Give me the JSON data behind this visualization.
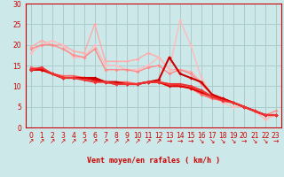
{
  "xlabel": "Vent moyen/en rafales ( km/h )",
  "xlim": [
    -0.5,
    23.5
  ],
  "ylim": [
    0,
    30
  ],
  "yticks": [
    0,
    5,
    10,
    15,
    20,
    25,
    30
  ],
  "xticks": [
    0,
    1,
    2,
    3,
    4,
    5,
    6,
    7,
    8,
    9,
    10,
    11,
    12,
    13,
    14,
    15,
    16,
    17,
    18,
    19,
    20,
    21,
    22,
    23
  ],
  "bg_color": "#cce8e8",
  "grid_color": "#aacccc",
  "lines": [
    {
      "x": [
        0,
        1,
        2,
        3,
        4,
        5,
        6,
        7,
        8,
        9,
        10,
        11,
        12,
        13,
        14,
        15,
        16,
        17,
        18,
        19,
        20,
        21,
        22,
        23
      ],
      "y": [
        19.5,
        21,
        20,
        20,
        18.5,
        18,
        25,
        16,
        16,
        16,
        16.5,
        18,
        17,
        14,
        14,
        13.5,
        11,
        8,
        7,
        6,
        5,
        4,
        2,
        3
      ],
      "color": "#ffaaaa",
      "alpha": 1.0,
      "lw": 1.0
    },
    {
      "x": [
        0,
        1,
        2,
        3,
        4,
        5,
        6,
        7,
        8,
        9,
        10,
        11,
        12,
        13,
        14,
        15,
        16,
        17,
        18,
        19,
        20,
        21,
        22,
        23
      ],
      "y": [
        18,
        20,
        21,
        20,
        17,
        17,
        20,
        15,
        15,
        14,
        14,
        15,
        17,
        14,
        26,
        20,
        12,
        8,
        6,
        5,
        5,
        4,
        2,
        3
      ],
      "color": "#ffbbbb",
      "alpha": 1.0,
      "lw": 1.0
    },
    {
      "x": [
        0,
        1,
        2,
        3,
        4,
        5,
        6,
        7,
        8,
        9,
        10,
        11,
        12,
        13,
        14,
        15,
        16,
        17,
        18,
        19,
        20,
        21,
        22,
        23
      ],
      "y": [
        19,
        20,
        20,
        19,
        17.5,
        17,
        19,
        14,
        14,
        14,
        13.5,
        14.5,
        15,
        13,
        14,
        13,
        10.5,
        8,
        7,
        6,
        5,
        4,
        3,
        4
      ],
      "color": "#ff8888",
      "alpha": 1.0,
      "lw": 1.0
    },
    {
      "x": [
        0,
        1,
        2,
        3,
        4,
        5,
        6,
        7,
        8,
        9,
        10,
        11,
        12,
        13,
        14,
        15,
        16,
        17,
        18,
        19,
        20,
        21,
        22,
        23
      ],
      "y": [
        14.5,
        14,
        13,
        12.5,
        12.5,
        12,
        12,
        11,
        11,
        11,
        10.5,
        11,
        11,
        10.5,
        10,
        9.5,
        8,
        7,
        6.5,
        6,
        5,
        4,
        3,
        3
      ],
      "color": "#ff6666",
      "alpha": 1.0,
      "lw": 1.2
    },
    {
      "x": [
        0,
        1,
        2,
        3,
        4,
        5,
        6,
        7,
        8,
        9,
        10,
        11,
        12,
        13,
        14,
        15,
        16,
        17,
        18,
        19,
        20,
        21,
        22,
        23
      ],
      "y": [
        14,
        14,
        13,
        12,
        12,
        12,
        12,
        11,
        11,
        10.5,
        10.5,
        11,
        11.5,
        17,
        13,
        12,
        11,
        8,
        7,
        6,
        5,
        4,
        3,
        3
      ],
      "color": "#cc0000",
      "alpha": 1.0,
      "lw": 1.5
    },
    {
      "x": [
        0,
        1,
        2,
        3,
        4,
        5,
        6,
        7,
        8,
        9,
        10,
        11,
        12,
        13,
        14,
        15,
        16,
        17,
        18,
        19,
        20,
        21,
        22,
        23
      ],
      "y": [
        14,
        14,
        13,
        12,
        12,
        12,
        11.5,
        11,
        10.5,
        10.5,
        10.5,
        11,
        11,
        10,
        10,
        9.5,
        8.5,
        7.5,
        7,
        6,
        5,
        4,
        3,
        3
      ],
      "color": "#dd0000",
      "alpha": 1.0,
      "lw": 1.5
    },
    {
      "x": [
        0,
        1,
        2,
        3,
        4,
        5,
        6,
        7,
        8,
        9,
        10,
        11,
        12,
        13,
        14,
        15,
        16,
        17,
        18,
        19,
        20,
        21,
        22,
        23
      ],
      "y": [
        14,
        14.5,
        13,
        12,
        12,
        11.5,
        11,
        11,
        10.5,
        10.5,
        10.5,
        11,
        11,
        10.5,
        10.5,
        10,
        9,
        7.5,
        6.5,
        6,
        5,
        4,
        3,
        3
      ],
      "color": "#ee3333",
      "alpha": 1.0,
      "lw": 1.5
    }
  ],
  "arrows": [
    "↗",
    "↗",
    "↗",
    "↗",
    "↗",
    "↗",
    "↗",
    "↗",
    "↗",
    "↗",
    "↗",
    "↗",
    "↗",
    "→",
    "→",
    "→",
    "↘",
    "↘",
    "↘",
    "↘",
    "→",
    "↘",
    "↘",
    "→"
  ],
  "axis_fontsize": 6,
  "tick_fontsize": 5.5
}
